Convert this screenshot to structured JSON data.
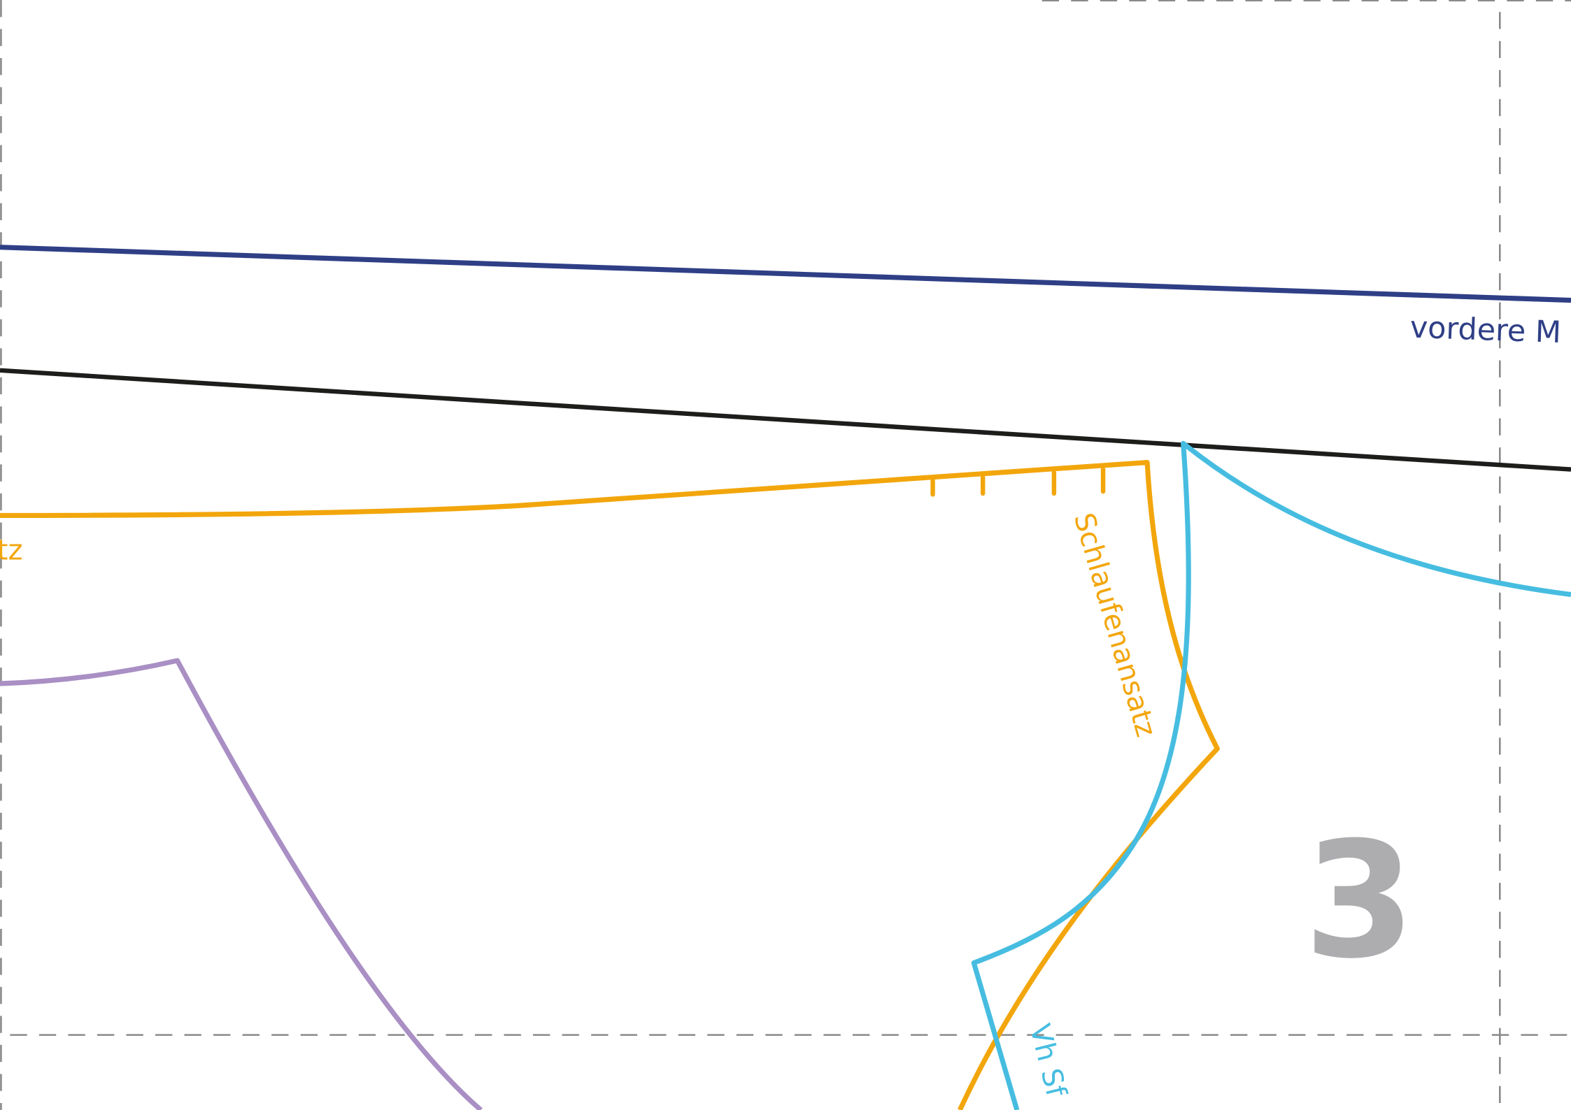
{
  "sheet": {
    "page_number": "3"
  },
  "labels": {
    "vordere_mitte": "vordere M",
    "schlaufenansatz": "Schlaufenansatz",
    "left_edge_fragment": "tz",
    "vh_fragment": "Vh Sf"
  },
  "colors": {
    "navy": "#2f3f86",
    "black": "#1d1d1b",
    "orange": "#f2a60c",
    "cyan": "#46bde0",
    "lavender": "#a98fc4",
    "guide": "#8a8a8a",
    "page_number": "#adadb0"
  }
}
